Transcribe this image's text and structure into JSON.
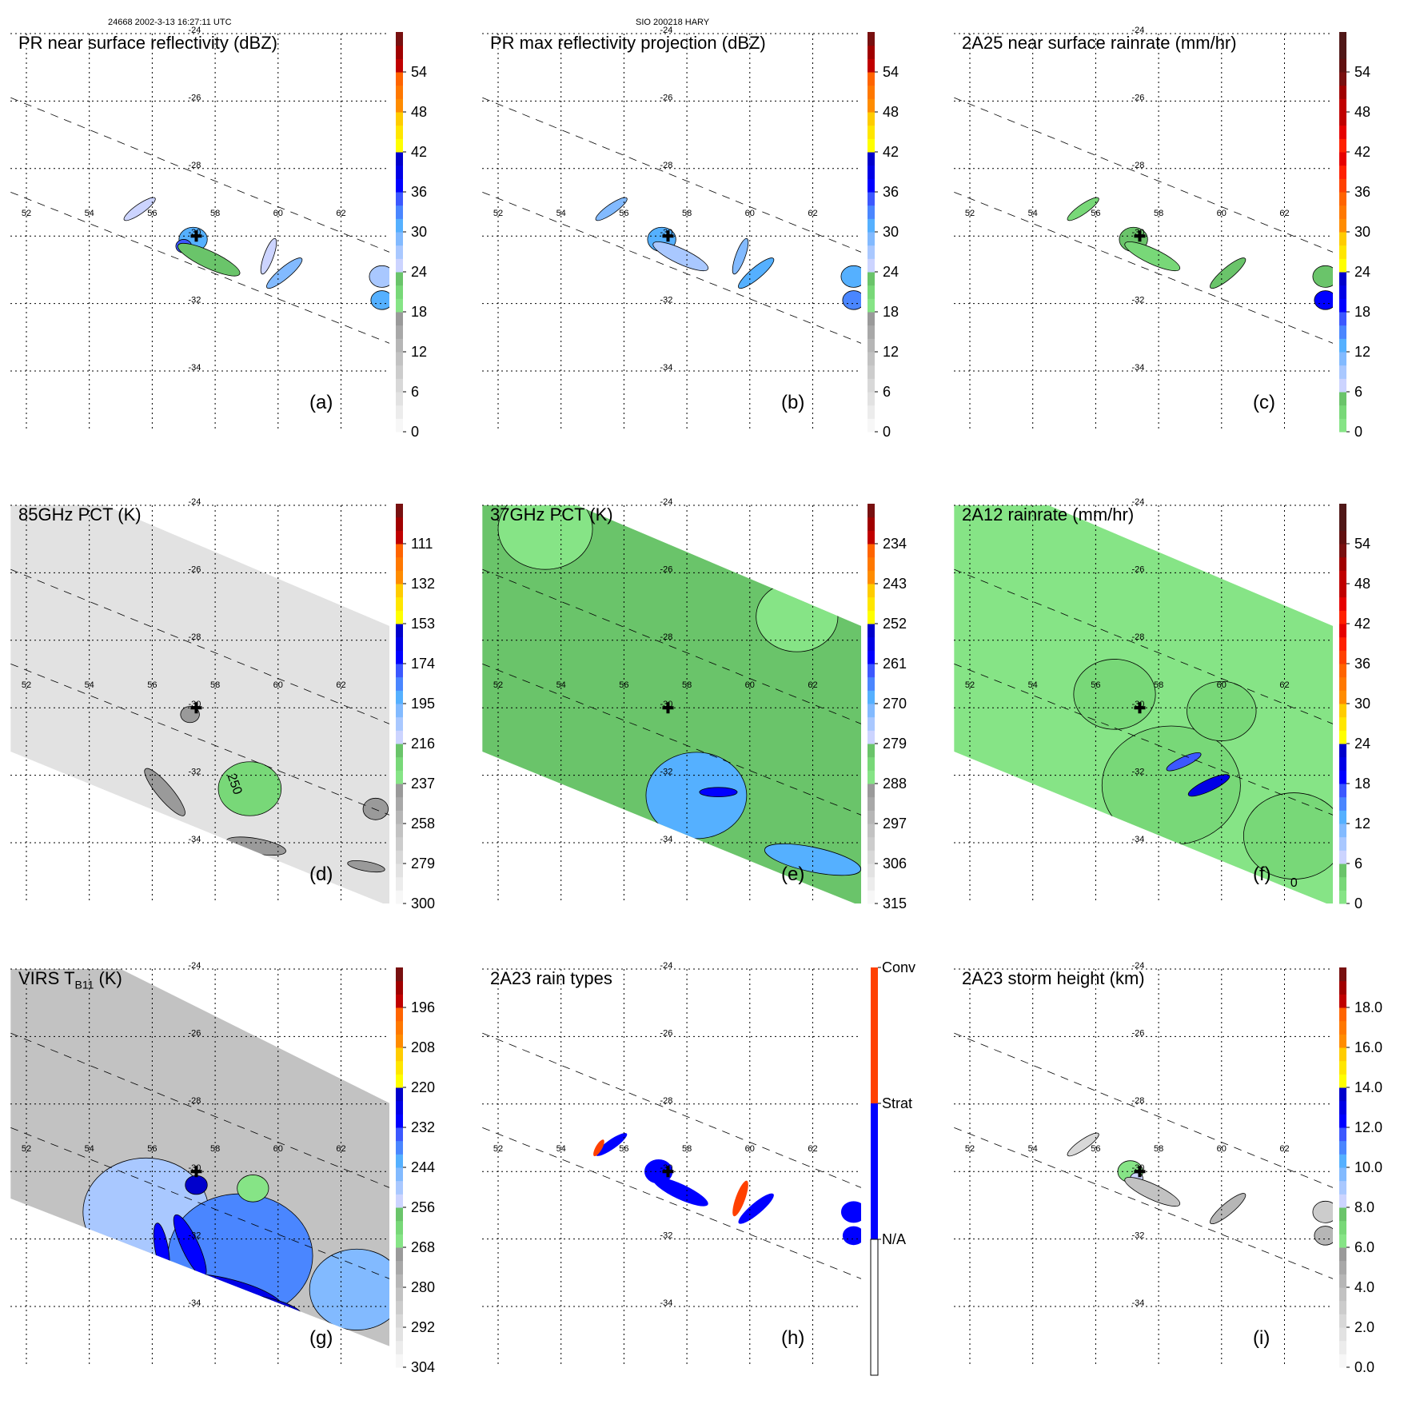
{
  "header": {
    "orbit_time": "24668 2002-3-13 16:27:11 UTC",
    "storm": "SIO 200218 HARY"
  },
  "chart_data": [
    {
      "type": "heatmap",
      "id": "a",
      "title": "PR near surface reflectivity (dBZ)",
      "panel_label": "(a)",
      "units": "dBZ",
      "colorbar": {
        "ticks": [
          "0",
          "6",
          "12",
          "18",
          "24",
          "30",
          "36",
          "42",
          "48",
          "54"
        ],
        "range": [
          0,
          60
        ],
        "scheme": "standard"
      },
      "xticks": [
        "52",
        "54",
        "56",
        "58",
        "60",
        "62"
      ],
      "yticks": [
        "-24",
        "-26",
        "-28",
        "-30",
        "-32",
        "-34"
      ],
      "swath": "PR",
      "features": [
        {
          "lon": 57.3,
          "lat": -30.1,
          "r": 0.45,
          "v": 30,
          "kind": "blob"
        },
        {
          "lon": 57.0,
          "lat": -30.3,
          "r": 0.25,
          "v": 34,
          "kind": "blob"
        },
        {
          "lon": 55.6,
          "lat": -29.2,
          "r": 0.5,
          "v": 25,
          "kind": "band",
          "angle": -35
        },
        {
          "lon": 57.8,
          "lat": -30.7,
          "r": 0.9,
          "v": 22,
          "kind": "band",
          "angle": 25
        },
        {
          "lon": 60.2,
          "lat": -31.1,
          "r": 0.6,
          "v": 28,
          "kind": "band",
          "angle": -40
        },
        {
          "lon": 59.7,
          "lat": -30.6,
          "r": 0.5,
          "v": 24,
          "kind": "band",
          "angle": -70
        },
        {
          "lon": 63.3,
          "lat": -31.2,
          "r": 0.4,
          "v": 26,
          "kind": "blob"
        },
        {
          "lon": 63.3,
          "lat": -31.9,
          "r": 0.35,
          "v": 30,
          "kind": "blob"
        }
      ]
    },
    {
      "type": "heatmap",
      "id": "b",
      "title": "PR max reflectivity projection (dBZ)",
      "panel_label": "(b)",
      "units": "dBZ",
      "colorbar": {
        "ticks": [
          "0",
          "6",
          "12",
          "18",
          "24",
          "30",
          "36",
          "42",
          "48",
          "54"
        ],
        "range": [
          0,
          60
        ],
        "scheme": "standard"
      },
      "xticks": [
        "52",
        "54",
        "56",
        "58",
        "60",
        "62"
      ],
      "yticks": [
        "-24",
        "-26",
        "-28",
        "-30",
        "-32",
        "-34"
      ],
      "swath": "PR",
      "features": [
        {
          "lon": 57.2,
          "lat": -30.1,
          "r": 0.45,
          "v": 30,
          "kind": "blob"
        },
        {
          "lon": 55.6,
          "lat": -29.2,
          "r": 0.5,
          "v": 28,
          "kind": "band",
          "angle": -35
        },
        {
          "lon": 57.8,
          "lat": -30.6,
          "r": 0.8,
          "v": 27,
          "kind": "band",
          "angle": 25
        },
        {
          "lon": 60.2,
          "lat": -31.1,
          "r": 0.6,
          "v": 30,
          "kind": "band",
          "angle": -40
        },
        {
          "lon": 59.7,
          "lat": -30.6,
          "r": 0.5,
          "v": 28,
          "kind": "band",
          "angle": -70
        },
        {
          "lon": 63.3,
          "lat": -31.2,
          "r": 0.4,
          "v": 30,
          "kind": "blob"
        },
        {
          "lon": 63.3,
          "lat": -31.9,
          "r": 0.35,
          "v": 32,
          "kind": "blob"
        }
      ]
    },
    {
      "type": "heatmap",
      "id": "c",
      "title": "2A25 near surface rainrate (mm/hr)",
      "panel_label": "(c)",
      "units": "mm/hr",
      "colorbar": {
        "ticks": [
          "0",
          "6",
          "12",
          "18",
          "24",
          "30",
          "36",
          "42",
          "48",
          "54"
        ],
        "range": [
          0,
          60
        ],
        "scheme": "rain"
      },
      "xticks": [
        "52",
        "54",
        "56",
        "58",
        "60",
        "62"
      ],
      "yticks": [
        "-24",
        "-26",
        "-28",
        "-30",
        "-32",
        "-34"
      ],
      "swath": "PR",
      "features": [
        {
          "lon": 57.2,
          "lat": -30.1,
          "r": 0.45,
          "v": 4,
          "kind": "blob"
        },
        {
          "lon": 55.6,
          "lat": -29.2,
          "r": 0.5,
          "v": 3,
          "kind": "band",
          "angle": -35
        },
        {
          "lon": 57.8,
          "lat": -30.6,
          "r": 0.8,
          "v": 3,
          "kind": "band",
          "angle": 25
        },
        {
          "lon": 60.2,
          "lat": -31.1,
          "r": 0.6,
          "v": 4,
          "kind": "band",
          "angle": -40
        },
        {
          "lon": 63.3,
          "lat": -31.2,
          "r": 0.4,
          "v": 4,
          "kind": "blob"
        },
        {
          "lon": 63.3,
          "lat": -31.9,
          "r": 0.35,
          "v": 18,
          "kind": "blob"
        }
      ]
    },
    {
      "type": "heatmap",
      "id": "d",
      "title": "85GHz PCT (K)",
      "panel_label": "(d)",
      "units": "K",
      "colorbar": {
        "ticks": [
          "300",
          "279",
          "258",
          "237",
          "216",
          "195",
          "174",
          "153",
          "132",
          "111"
        ],
        "range": [
          300,
          90
        ],
        "scheme": "standard"
      },
      "xticks": [
        "52",
        "54",
        "56",
        "58",
        "60",
        "62"
      ],
      "yticks": [
        "-24",
        "-26",
        "-28",
        "-30",
        "-32",
        "-34"
      ],
      "contour_label": "250",
      "swath": "TMI",
      "background_value": 285,
      "features": [
        {
          "lon": 57.2,
          "lat": -30.2,
          "r": 0.3,
          "v": 240,
          "kind": "blob"
        },
        {
          "lon": 56.4,
          "lat": -32.5,
          "r": 0.8,
          "v": 240,
          "kind": "band",
          "angle": 50
        },
        {
          "lon": 59.1,
          "lat": -32.4,
          "r": 1.0,
          "v": 228,
          "kind": "blob"
        },
        {
          "lon": 59.3,
          "lat": -34.1,
          "r": 0.8,
          "v": 240,
          "kind": "band",
          "angle": 10
        },
        {
          "lon": 62.8,
          "lat": -34.7,
          "r": 0.5,
          "v": 240,
          "kind": "band",
          "angle": 10
        },
        {
          "lon": 63.1,
          "lat": -33.0,
          "r": 0.4,
          "v": 240,
          "kind": "blob"
        }
      ]
    },
    {
      "type": "heatmap",
      "id": "e",
      "title": "37GHz PCT (K)",
      "panel_label": "(e)",
      "units": "K",
      "colorbar": {
        "ticks": [
          "315",
          "306",
          "297",
          "288",
          "279",
          "270",
          "261",
          "252",
          "243",
          "234"
        ],
        "range": [
          315,
          225
        ],
        "scheme": "standard"
      },
      "xticks": [
        "52",
        "54",
        "56",
        "58",
        "60",
        "62"
      ],
      "yticks": [
        "-24",
        "-26",
        "-28",
        "-30",
        "-32",
        "-34"
      ],
      "swath": "TMI",
      "background_value": 280,
      "features": [
        {
          "lon": 53.5,
          "lat": -24.7,
          "r": 1.5,
          "v": 286,
          "kind": "blob"
        },
        {
          "lon": 61.5,
          "lat": -27.3,
          "r": 1.3,
          "v": 286,
          "kind": "blob"
        },
        {
          "lon": 58.3,
          "lat": -32.6,
          "r": 1.6,
          "v": 268,
          "kind": "blob"
        },
        {
          "lon": 62.0,
          "lat": -34.5,
          "r": 1.3,
          "v": 268,
          "kind": "band",
          "angle": 12
        },
        {
          "lon": 59.0,
          "lat": -32.5,
          "r": 0.5,
          "v": 259,
          "kind": "band",
          "angle": 0
        }
      ]
    },
    {
      "type": "heatmap",
      "id": "f",
      "title": "2A12 rainrate (mm/hr)",
      "panel_label": "(f)",
      "units": "mm/hr",
      "contour_label": "0",
      "colorbar": {
        "ticks": [
          "0",
          "6",
          "12",
          "18",
          "24",
          "30",
          "36",
          "42",
          "48",
          "54"
        ],
        "range": [
          0,
          60
        ],
        "scheme": "rain"
      },
      "xticks": [
        "52",
        "54",
        "56",
        "58",
        "60",
        "62"
      ],
      "yticks": [
        "-24",
        "-26",
        "-28",
        "-30",
        "-32",
        "-34"
      ],
      "swath": "TMI",
      "features": [
        {
          "lon": 58.4,
          "lat": -32.3,
          "r": 2.2,
          "v": 3,
          "kind": "blob"
        },
        {
          "lon": 56.6,
          "lat": -29.6,
          "r": 1.3,
          "v": 2,
          "kind": "blob"
        },
        {
          "lon": 60.0,
          "lat": -30.1,
          "r": 1.1,
          "v": 2,
          "kind": "blob"
        },
        {
          "lon": 62.3,
          "lat": -33.8,
          "r": 1.6,
          "v": 3,
          "kind": "blob"
        },
        {
          "lon": 59.6,
          "lat": -32.3,
          "r": 0.6,
          "v": 20,
          "kind": "band",
          "angle": -25
        },
        {
          "lon": 58.8,
          "lat": -31.6,
          "r": 0.5,
          "v": 16,
          "kind": "band",
          "angle": -25
        }
      ]
    },
    {
      "type": "heatmap",
      "id": "g",
      "title": "VIRS T",
      "title_sub": "B11",
      "title_units": "(K)",
      "panel_label": "(g)",
      "units": "K",
      "colorbar": {
        "ticks": [
          "304",
          "292",
          "280",
          "268",
          "256",
          "244",
          "232",
          "220",
          "208",
          "196"
        ],
        "range": [
          304,
          184
        ],
        "scheme": "standard"
      },
      "xticks": [
        "52",
        "54",
        "56",
        "58",
        "60",
        "62"
      ],
      "yticks": [
        "-24",
        "-26",
        "-28",
        "-30",
        "-32",
        "-34"
      ],
      "swath": "VIRS",
      "background_value": 283,
      "features": [
        {
          "lon": 55.8,
          "lat": -31.2,
          "r": 2.0,
          "v": 250,
          "kind": "blob"
        },
        {
          "lon": 58.8,
          "lat": -32.5,
          "r": 2.3,
          "v": 240,
          "kind": "blob"
        },
        {
          "lon": 62.5,
          "lat": -33.5,
          "r": 1.5,
          "v": 245,
          "kind": "blob"
        },
        {
          "lon": 58.5,
          "lat": -33.6,
          "r": 1.4,
          "v": 228,
          "kind": "band",
          "angle": 15
        },
        {
          "lon": 57.2,
          "lat": -32.2,
          "r": 0.9,
          "v": 230,
          "kind": "band",
          "angle": 65
        },
        {
          "lon": 56.3,
          "lat": -32.3,
          "r": 0.7,
          "v": 230,
          "kind": "band",
          "angle": 80
        },
        {
          "lon": 59.8,
          "lat": -34.0,
          "r": 0.8,
          "v": 222,
          "kind": "band",
          "angle": 15
        },
        {
          "lon": 57.4,
          "lat": -30.4,
          "r": 0.35,
          "v": 222,
          "kind": "blob"
        },
        {
          "lon": 59.2,
          "lat": -30.5,
          "r": 0.5,
          "v": 266,
          "kind": "blob"
        }
      ]
    },
    {
      "type": "heatmap",
      "id": "h",
      "title": "2A23 rain types",
      "panel_label": "(h)",
      "units": "category",
      "categorical_colorbar": [
        {
          "label": "Conv",
          "color": "#ff4000"
        },
        {
          "label": "Strat",
          "color": "#0000ff"
        },
        {
          "label": "N/A",
          "color": "#ffffff"
        }
      ],
      "xticks": [
        "52",
        "54",
        "56",
        "58",
        "60",
        "62"
      ],
      "yticks": [
        "-24",
        "-26",
        "-28",
        "-30",
        "-32",
        "-34"
      ],
      "swath": "PR",
      "features": [
        {
          "lon": 57.1,
          "lat": -30.0,
          "r": 0.45,
          "v": "Strat",
          "kind": "blob"
        },
        {
          "lon": 55.6,
          "lat": -29.2,
          "r": 0.5,
          "v": "Strat",
          "kind": "band",
          "angle": -35
        },
        {
          "lon": 57.8,
          "lat": -30.6,
          "r": 0.8,
          "v": "Strat",
          "kind": "band",
          "angle": 25
        },
        {
          "lon": 60.2,
          "lat": -31.1,
          "r": 0.6,
          "v": "Strat",
          "kind": "band",
          "angle": -40
        },
        {
          "lon": 59.7,
          "lat": -30.8,
          "r": 0.5,
          "v": "Conv",
          "kind": "band",
          "angle": -70
        },
        {
          "lon": 63.3,
          "lat": -31.2,
          "r": 0.4,
          "v": "Strat",
          "kind": "blob"
        },
        {
          "lon": 63.3,
          "lat": -31.9,
          "r": 0.35,
          "v": "Strat",
          "kind": "blob"
        },
        {
          "lon": 55.2,
          "lat": -29.3,
          "r": 0.25,
          "v": "Conv",
          "kind": "band",
          "angle": -60
        }
      ]
    },
    {
      "type": "heatmap",
      "id": "i",
      "title": "2A23 storm height (km)",
      "panel_label": "(i)",
      "units": "km",
      "colorbar": {
        "ticks": [
          "0.0",
          "2.0",
          "4.0",
          "6.0",
          "8.0",
          "10.0",
          "12.0",
          "14.0",
          "16.0",
          "18.0"
        ],
        "range": [
          0,
          20
        ],
        "scheme": "standard"
      },
      "xticks": [
        "52",
        "54",
        "56",
        "58",
        "60",
        "62"
      ],
      "yticks": [
        "-24",
        "-26",
        "-28",
        "-30",
        "-32",
        "-34"
      ],
      "swath": "PR",
      "features": [
        {
          "lon": 57.1,
          "lat": -30.0,
          "r": 0.4,
          "v": 6,
          "kind": "blob"
        },
        {
          "lon": 57.3,
          "lat": -30.2,
          "r": 0.2,
          "v": 8,
          "kind": "blob"
        },
        {
          "lon": 57.8,
          "lat": -30.6,
          "r": 0.8,
          "v": 3.5,
          "kind": "band",
          "angle": 25
        },
        {
          "lon": 55.6,
          "lat": -29.2,
          "r": 0.5,
          "v": 2,
          "kind": "band",
          "angle": -35
        },
        {
          "lon": 60.2,
          "lat": -31.1,
          "r": 0.6,
          "v": 4,
          "kind": "band",
          "angle": -40
        },
        {
          "lon": 63.3,
          "lat": -31.9,
          "r": 0.35,
          "v": 4,
          "kind": "blob"
        },
        {
          "lon": 63.3,
          "lat": -31.2,
          "r": 0.4,
          "v": 3,
          "kind": "blob"
        }
      ]
    }
  ],
  "storm_center": {
    "lon": 57.4,
    "lat": -30.0
  }
}
